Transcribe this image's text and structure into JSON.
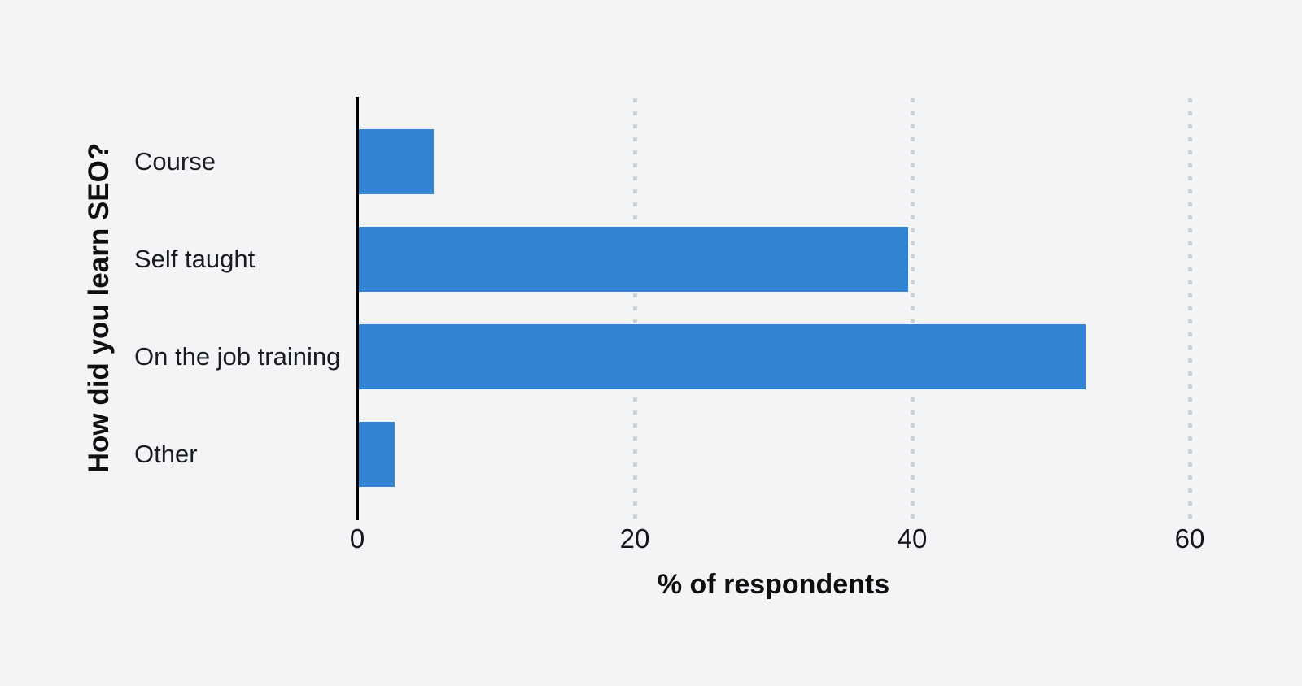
{
  "chart_data": {
    "type": "bar",
    "orientation": "horizontal",
    "title": "",
    "categories": [
      "Course",
      "Self taught",
      "On the job training",
      "Other"
    ],
    "values": [
      5.4,
      39.6,
      52.4,
      2.6
    ],
    "unit": "%",
    "xlabel": "% of respondents",
    "ylabel": "How did you learn SEO?",
    "xlim": [
      0,
      60
    ],
    "xticks": [
      0,
      20,
      40,
      60
    ],
    "grid": "dotted-vertical-at-xticks",
    "legend": "none",
    "colors": {
      "bar": "#3484d4",
      "background": "#f2f4f6",
      "axis_line": "#000000",
      "gridline": "#cdd0d4",
      "tick_text": "#141619",
      "category_text": "#1a1c1f",
      "title_text": "#0e0f11"
    }
  }
}
